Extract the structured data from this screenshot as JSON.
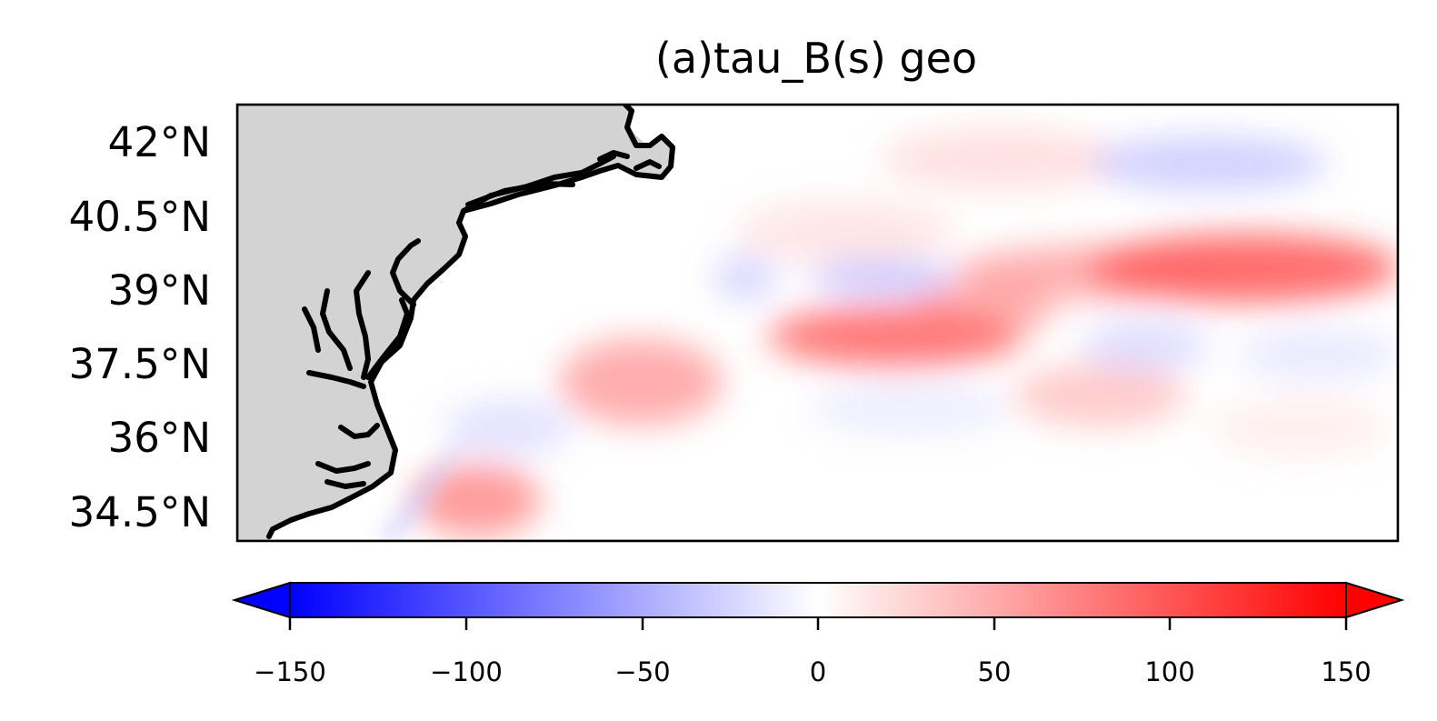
{
  "map": {
    "title": "(a)tau_B(s) geo",
    "lat_labels": [
      "42°N",
      "40.5°N",
      "39°N",
      "37.5°N",
      "36°N",
      "34.5°N"
    ],
    "land_color": "#d3d3d3",
    "coast_color": "#000000",
    "field": "tau_B(s)",
    "colormap": "bwr",
    "colorbar": {
      "min": -150,
      "max": 150,
      "extend": "both",
      "ticks": [
        "−150",
        "−100",
        "−50",
        "0",
        "50",
        "100",
        "150"
      ],
      "colors": {
        "low": "#0000ff",
        "mid": "#ffffff",
        "high": "#ff0000"
      }
    }
  }
}
